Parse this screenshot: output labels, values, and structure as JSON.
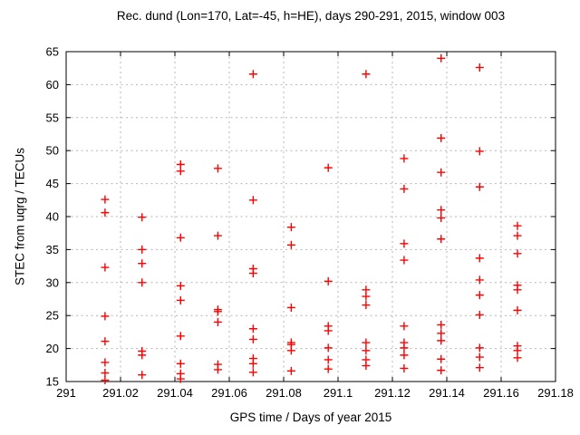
{
  "title": "Rec. dund (Lon=170, Lat=-45, h=HE), days 290-291, 2015, window 003",
  "chart_data": {
    "type": "scatter",
    "title": "Rec. dund (Lon=170, Lat=-45, h=HE), days 290-291, 2015, window 003",
    "xlabel": "GPS time / Days of year 2015",
    "ylabel": "STEC from uqrg / TECUs",
    "xlim": [
      291,
      291.18
    ],
    "ylim": [
      15,
      65
    ],
    "grid": true,
    "legend": "none",
    "marker": "plus",
    "marker_color": "#ff0000",
    "axis_color": "#000000",
    "grid_color": "#b5b5b5",
    "xticks": [
      291,
      291.02,
      291.04,
      291.06,
      291.08,
      291.1,
      291.12,
      291.14,
      291.16,
      291.18
    ],
    "xtick_labels": [
      "291",
      "291.02",
      "291.04",
      "291.06",
      "291.08",
      "291.1",
      "291.12",
      "291.14",
      "291.16",
      "291.18"
    ],
    "yticks": [
      15,
      20,
      25,
      30,
      35,
      40,
      45,
      50,
      55,
      60,
      65
    ],
    "ytick_labels": [
      "15",
      "20",
      "25",
      "30",
      "35",
      "40",
      "45",
      "50",
      "55",
      "60",
      "65"
    ],
    "series": [
      {
        "name": "STEC",
        "clusters": [
          {
            "t": 291.0143,
            "stec": [
              42.6,
              40.6,
              32.3,
              24.9,
              21.1,
              17.9,
              16.3,
              15.2
            ]
          },
          {
            "t": 291.0279,
            "stec": [
              39.9,
              35.0,
              32.9,
              30.0,
              19.6,
              19.0,
              16.0
            ]
          },
          {
            "t": 291.0421,
            "stec": [
              47.9,
              46.9,
              36.8,
              29.5,
              27.3,
              21.9,
              17.7,
              16.2,
              15.4
            ]
          },
          {
            "t": 291.0558,
            "stec": [
              47.3,
              37.1,
              25.9,
              25.6,
              24.0,
              17.6,
              16.8
            ]
          },
          {
            "t": 291.0688,
            "stec": [
              61.6,
              42.5,
              32.1,
              31.4,
              23.0,
              21.4,
              18.5,
              17.7,
              16.4
            ]
          },
          {
            "t": 291.0828,
            "stec": [
              38.4,
              35.7,
              26.2,
              20.9,
              20.6,
              19.7,
              16.6
            ]
          },
          {
            "t": 291.0964,
            "stec": [
              47.4,
              30.2,
              23.4,
              22.7,
              20.1,
              18.3,
              16.9
            ]
          },
          {
            "t": 291.1103,
            "stec": [
              61.6,
              28.9,
              27.9,
              26.6,
              20.9,
              19.7,
              18.3,
              17.4
            ]
          },
          {
            "t": 291.1243,
            "stec": [
              48.8,
              44.2,
              35.9,
              33.4,
              23.4,
              20.9,
              20.1,
              19.0,
              17.0
            ]
          },
          {
            "t": 291.1379,
            "stec": [
              64.0,
              51.9,
              46.7,
              41.0,
              39.8,
              36.6,
              23.6,
              22.3,
              21.2,
              18.4,
              16.7
            ]
          },
          {
            "t": 291.1521,
            "stec": [
              62.6,
              49.9,
              44.5,
              33.7,
              30.4,
              28.1,
              25.1,
              20.1,
              18.7,
              17.1
            ]
          },
          {
            "t": 291.166,
            "stec": [
              38.6,
              37.1,
              34.4,
              29.6,
              28.9,
              25.8,
              20.4,
              19.7,
              18.6
            ]
          }
        ]
      }
    ]
  }
}
